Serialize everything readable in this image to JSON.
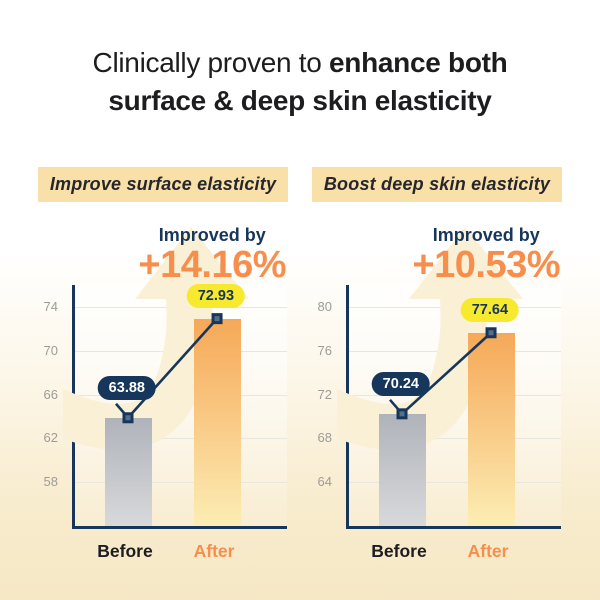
{
  "title": {
    "line1_regular": "Clinically proven to ",
    "line1_bold": "enhance both",
    "line2_bold": "surface & deep skin elasticity"
  },
  "panels": [
    {
      "header": "Improve surface elasticity",
      "improved_label": "Improved by",
      "improved_value": "+14.16%"
    },
    {
      "header": "Boost deep skin elasticity",
      "improved_label": "Improved by",
      "improved_value": "+10.53%"
    }
  ],
  "chart_data": [
    {
      "type": "bar",
      "title": "Improve surface elasticity",
      "categories": [
        "Before",
        "After"
      ],
      "values": [
        63.88,
        72.93
      ],
      "value_labels": [
        "63.88",
        "72.93"
      ],
      "improvement": "+14.16%",
      "yticks": [
        58,
        62,
        66,
        70,
        74
      ],
      "ylim": [
        54,
        76
      ],
      "grid": true,
      "legend": "none",
      "bar_styles": [
        "gray-gradient",
        "orange-gradient"
      ]
    },
    {
      "type": "bar",
      "title": "Boost deep skin elasticity",
      "categories": [
        "Before",
        "After"
      ],
      "values": [
        70.24,
        77.64
      ],
      "value_labels": [
        "70.24",
        "77.64"
      ],
      "improvement": "+10.53%",
      "yticks": [
        64,
        68,
        72,
        76,
        80
      ],
      "ylim": [
        60,
        82
      ],
      "grid": true,
      "legend": "none",
      "bar_styles": [
        "gray-gradient",
        "orange-gradient"
      ]
    }
  ],
  "colors": {
    "navy": "#17365C",
    "orange": "#F78E4C",
    "yellow": "#F7E92E",
    "tan": "#F8E0A8",
    "cream": "#FAF0D5",
    "orange_bar_top": "#F6A858",
    "orange_bar_bottom": "#FCEDB4",
    "page_bottom": "#F6E8C5"
  }
}
